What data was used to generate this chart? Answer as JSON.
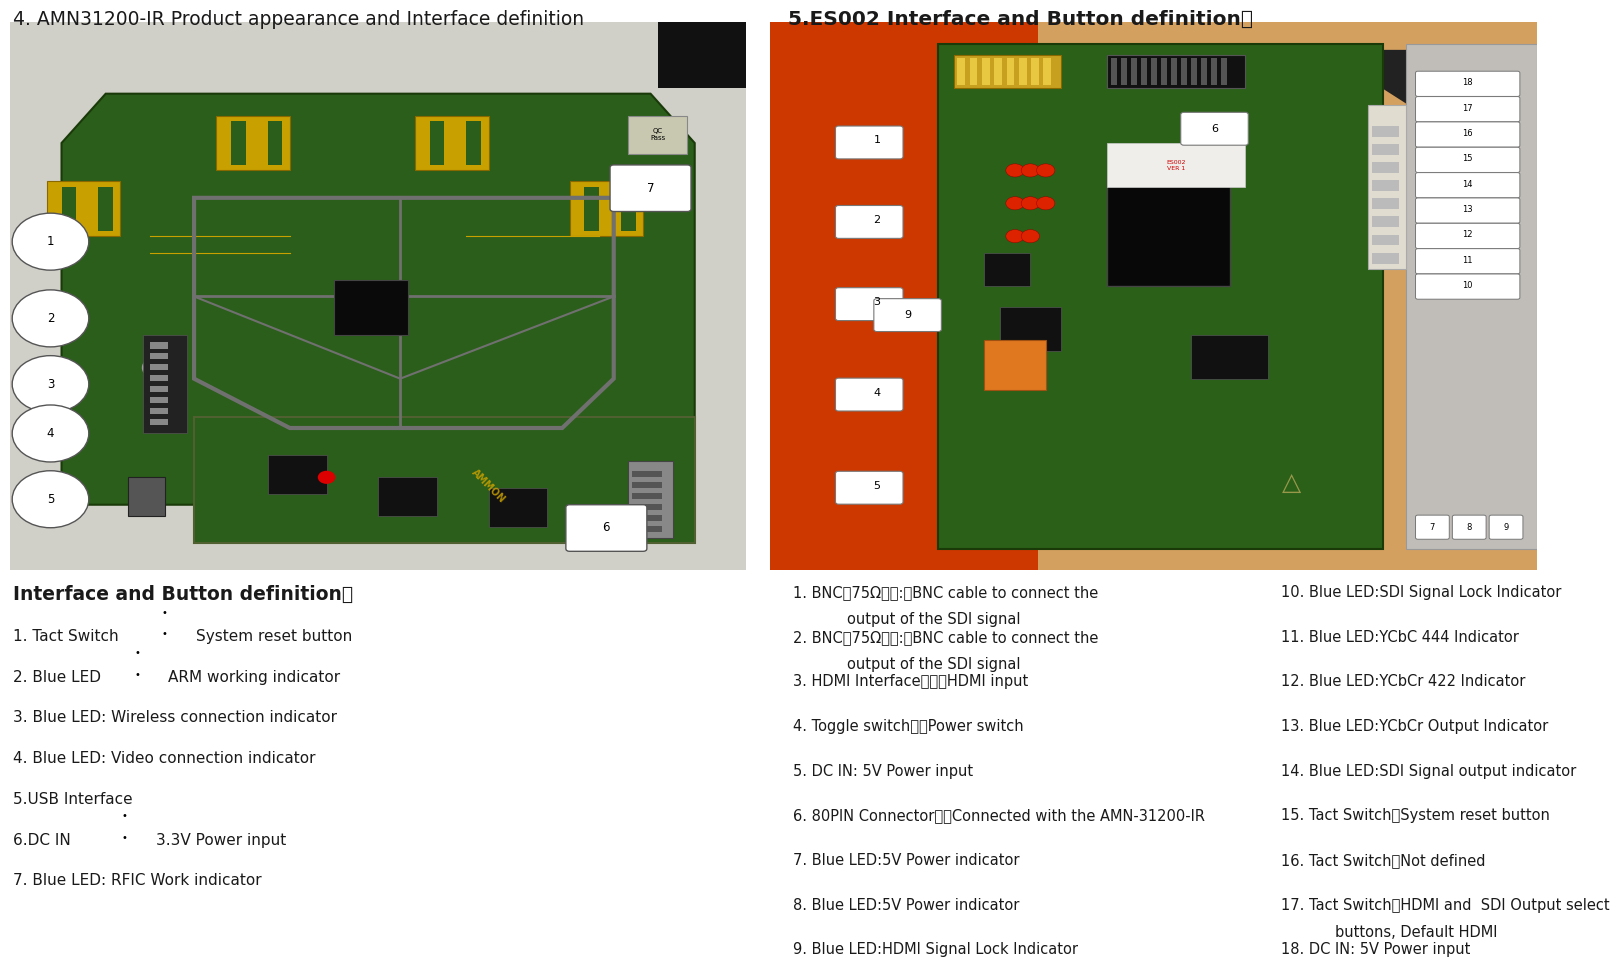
{
  "left_title": "4. AMN31200-IR Product appearance and Interface definition",
  "right_title": "5.ES002 Interface and Button definition：",
  "left_subtitle": "Interface and Button definition：",
  "left_items": [
    {
      "text": "1. Tact Switch",
      "dot_above": true,
      "suffix": "   System reset button"
    },
    {
      "text": "2. Blue LED",
      "dot_above": true,
      "suffix": "    ARM working indicator"
    },
    {
      "text": "3. Blue LED: Wireless connection indicator",
      "dot_above": false,
      "suffix": ""
    },
    {
      "text": "4. Blue LED: Video connection indicator",
      "dot_above": false,
      "suffix": ""
    },
    {
      "text": "5.USB Interface",
      "dot_above": false,
      "suffix": ""
    },
    {
      "text": "6.DC IN",
      "dot_above": true,
      "suffix": "     3.3V Power input"
    },
    {
      "text": "7. Blue LED: RFIC Work indicator",
      "dot_above": false,
      "suffix": ""
    }
  ],
  "right_col1": [
    [
      "1. BNC（75Ω）　:　BNC cable to connect the",
      "output of the SDI signal"
    ],
    [
      "2. BNC（75Ω）　:　BNC cable to connect the",
      "output of the SDI signal"
    ],
    [
      "3. HDMI Interface：　　HDMI input",
      ""
    ],
    [
      "4. Toggle switch：　Power switch",
      ""
    ],
    [
      "5. DC IN: 5V Power input",
      ""
    ],
    [
      "6. 80PIN Connector：　Connected with the AMN-31200-IR",
      ""
    ],
    [
      "7. Blue LED:5V Power indicator",
      ""
    ],
    [
      "8. Blue LED:5V Power indicator",
      ""
    ],
    [
      "9. Blue LED:HDMI Signal Lock Indicator",
      ""
    ]
  ],
  "right_col2": [
    "10. Blue LED:SDI Signal Lock Indicator",
    "11. Blue LED:YCbC 444 Indicator",
    "12. Blue LED:YCbCr 422 Indicator",
    "13. Blue LED:YCbCr Output Indicator",
    "14. Blue LED:SDI Signal output indicator",
    "15. Tact Switch：System reset button",
    "16. Tact Switch：Not defined",
    [
      "17. Tact Switch：HDMI and  SDI Output select",
      "buttons, Default HDMI"
    ],
    "18. DC IN: 5V Power input"
  ],
  "bg_color": "#ffffff",
  "text_color": "#1a1a1a",
  "title_left_color": "#1a1a1a",
  "title_right_color": "#1a1a1a",
  "pcb_green": "#2d5e1e",
  "pcb_green2": "#3a7a28",
  "frame_gray": "#888888",
  "gold": "#c8a000",
  "img_bg_gray": "#d8d8d0",
  "img_bg_orange": "#cc4400"
}
